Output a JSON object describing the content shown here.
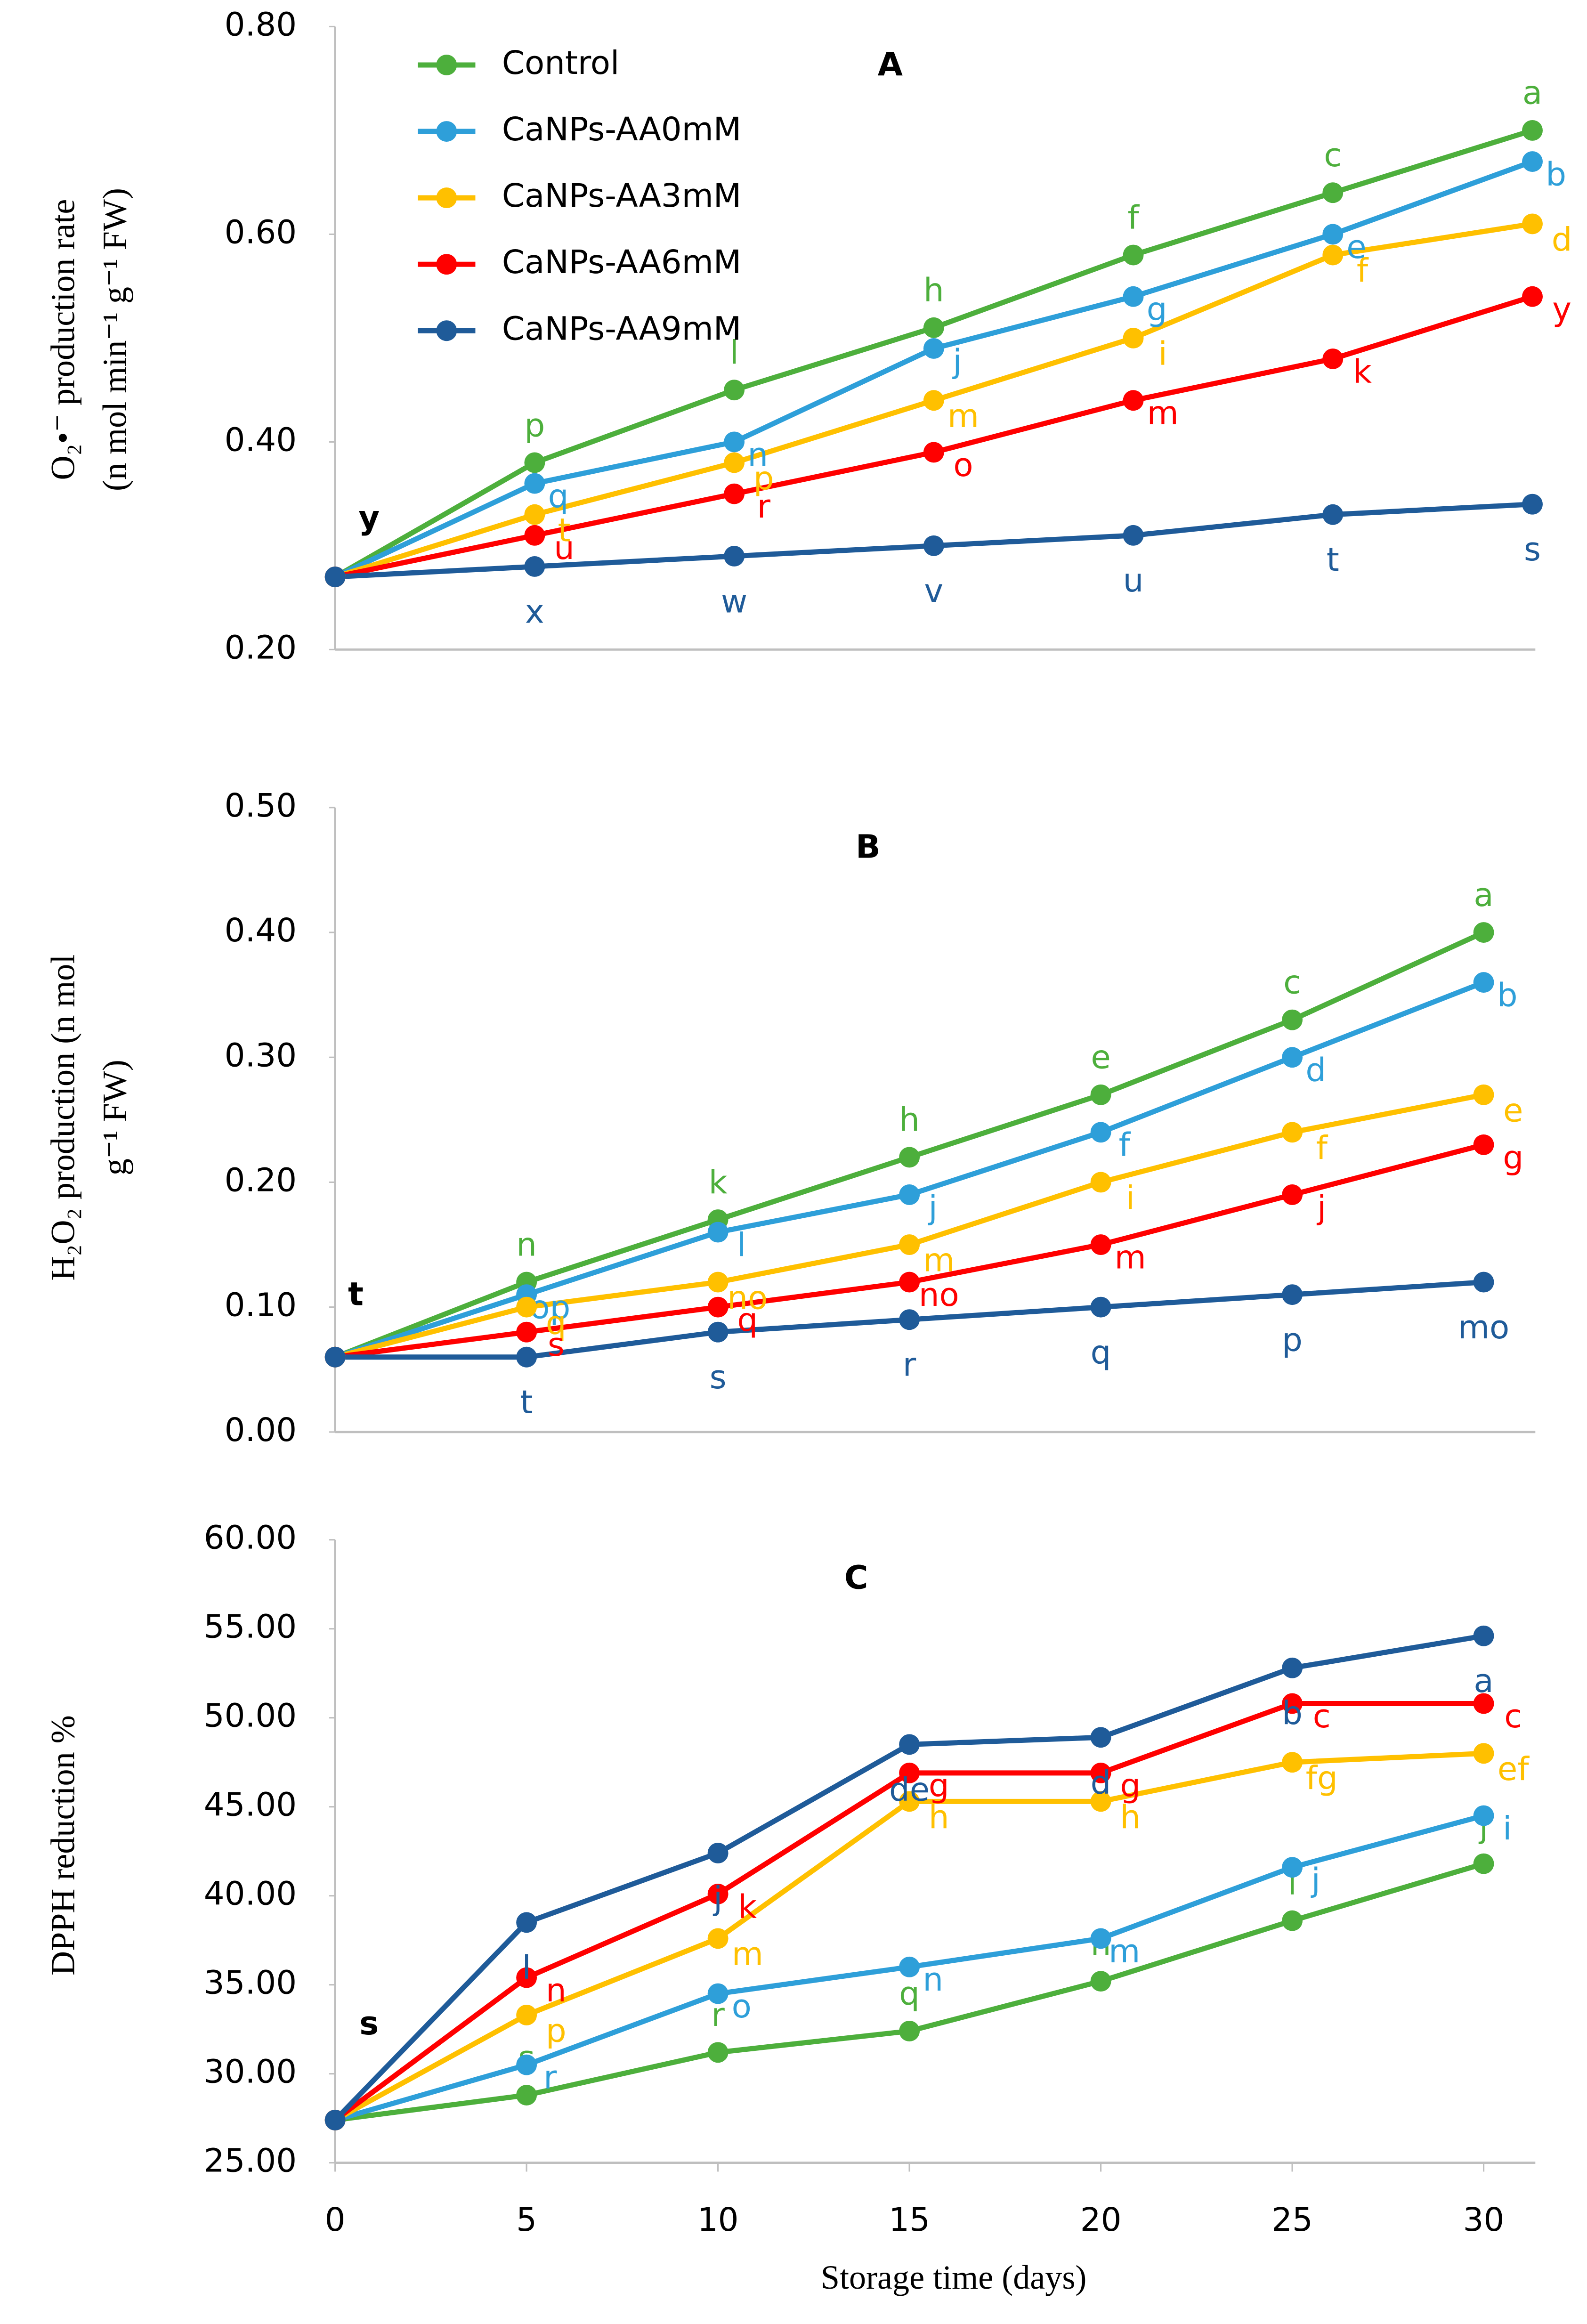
{
  "chart_data": [
    {
      "type": "line",
      "title": "A",
      "ylabel": [
        "O₂•⁻ production rate",
        "(n mol min⁻¹ g⁻¹ FW)"
      ],
      "day0_letter": "y",
      "legend": "top-left",
      "x": [
        0,
        5,
        10,
        15,
        20,
        25,
        30
      ],
      "xlim": [
        0,
        30
      ],
      "ylim": [
        0.2,
        0.8
      ],
      "yticks": [
        {
          "value": 0.2,
          "label": "0.20"
        },
        {
          "value": 0.4,
          "label": "0.40"
        },
        {
          "value": 0.6,
          "label": "0.60"
        },
        {
          "value": 0.8,
          "label": "0.80"
        }
      ],
      "series": [
        {
          "name": "Control",
          "color": "#4daf3c",
          "values": [
            0.27,
            0.38,
            0.45,
            0.51,
            0.58,
            0.64,
            0.7
          ],
          "letters": [
            null,
            "p",
            "l",
            "h",
            "f",
            "c",
            "a"
          ]
        },
        {
          "name": "CaNPs-AA0mM",
          "color": "#2e9fd9",
          "values": [
            0.27,
            0.36,
            0.4,
            0.49,
            0.54,
            0.6,
            0.67
          ],
          "letters": [
            null,
            "q",
            "n",
            "j",
            "g",
            "e",
            "b"
          ]
        },
        {
          "name": "CaNPs-AA3mM",
          "color": "#ffc000",
          "values": [
            0.27,
            0.33,
            0.38,
            0.44,
            0.5,
            0.58,
            0.61
          ],
          "letters": [
            null,
            "t",
            "p",
            "m",
            "i",
            "f",
            "d"
          ]
        },
        {
          "name": "CaNPs-AA6mM",
          "color": "#ff0000",
          "values": [
            0.27,
            0.31,
            0.35,
            0.39,
            0.44,
            0.48,
            0.54
          ],
          "letters": [
            null,
            "u",
            "r",
            "o",
            "m",
            "k",
            "y"
          ]
        },
        {
          "name": "CaNPs-AA9mM",
          "color": "#1f5b99",
          "values": [
            0.27,
            0.28,
            0.29,
            0.3,
            0.31,
            0.33,
            0.34
          ],
          "letters": [
            null,
            "x",
            "w",
            "v",
            "u",
            "t",
            "s"
          ]
        }
      ]
    },
    {
      "type": "line",
      "title": "B",
      "ylabel": [
        "H₂O₂ production (n mol",
        "g⁻¹ FW)"
      ],
      "day0_letter": "t",
      "x": [
        0,
        5,
        10,
        15,
        20,
        25,
        30
      ],
      "xlim": [
        0,
        30
      ],
      "ylim": [
        0,
        0.5
      ],
      "yticks": [
        {
          "value": 0,
          "label": "0.00"
        },
        {
          "value": 0.1,
          "label": "0.10"
        },
        {
          "value": 0.2,
          "label": "0.20"
        },
        {
          "value": 0.3,
          "label": "0.30"
        },
        {
          "value": 0.4,
          "label": "0.40"
        },
        {
          "value": 0.5,
          "label": "0.50"
        }
      ],
      "series": [
        {
          "name": "Control",
          "color": "#4daf3c",
          "values": [
            0.06,
            0.12,
            0.17,
            0.22,
            0.27,
            0.33,
            0.4
          ],
          "letters": [
            null,
            "n",
            "k",
            "h",
            "e",
            "c",
            "a"
          ]
        },
        {
          "name": "CaNPs-AA0mM",
          "color": "#2e9fd9",
          "values": [
            0.06,
            0.11,
            0.16,
            0.19,
            0.24,
            0.3,
            0.36
          ],
          "letters": [
            null,
            "op",
            "l",
            "j",
            "f",
            "d",
            "b"
          ]
        },
        {
          "name": "CaNPs-AA3mM",
          "color": "#ffc000",
          "values": [
            0.06,
            0.1,
            0.12,
            0.15,
            0.2,
            0.24,
            0.27
          ],
          "letters": [
            null,
            "q",
            "no",
            "m",
            "i",
            "f",
            "e"
          ]
        },
        {
          "name": "CaNPs-AA6mM",
          "color": "#ff0000",
          "values": [
            0.06,
            0.08,
            0.1,
            0.12,
            0.15,
            0.19,
            0.23
          ],
          "letters": [
            null,
            "s",
            "q",
            "no",
            "m",
            "j",
            "g"
          ]
        },
        {
          "name": "CaNPs-AA9mM",
          "color": "#1f5b99",
          "values": [
            0.06,
            0.06,
            0.08,
            0.09,
            0.1,
            0.11,
            0.12
          ],
          "letters": [
            null,
            "t",
            "s",
            "r",
            "q",
            "p",
            "mo"
          ]
        }
      ]
    },
    {
      "type": "line",
      "title": "C",
      "ylabel": [
        "DPPH reduction %"
      ],
      "day0_letter": "s",
      "xlabel": "Storage time (days)",
      "x": [
        0,
        5,
        10,
        15,
        20,
        25,
        30
      ],
      "xlim": [
        0,
        30
      ],
      "xticks": [
        0,
        5,
        10,
        15,
        20,
        25,
        30
      ],
      "ylim": [
        25,
        60
      ],
      "yticks": [
        {
          "value": 25,
          "label": "25.00"
        },
        {
          "value": 30,
          "label": "30.00"
        },
        {
          "value": 35,
          "label": "35.00"
        },
        {
          "value": 40,
          "label": "40.00"
        },
        {
          "value": 45,
          "label": "45.00"
        },
        {
          "value": 50,
          "label": "50.00"
        },
        {
          "value": 55,
          "label": "55.00"
        },
        {
          "value": 60,
          "label": "60.00"
        }
      ],
      "series": [
        {
          "name": "Control",
          "color": "#4daf3c",
          "values": [
            27.4,
            28.8,
            31.2,
            32.4,
            35.2,
            38.6,
            41.8
          ],
          "letters": [
            null,
            "s",
            "r",
            "q",
            "n",
            "l",
            "j"
          ]
        },
        {
          "name": "CaNPs-AA0mM",
          "color": "#2e9fd9",
          "values": [
            27.4,
            30.5,
            34.5,
            36.0,
            37.6,
            41.6,
            44.5
          ],
          "letters": [
            null,
            "r",
            "o",
            "n",
            "m",
            "j",
            "i"
          ]
        },
        {
          "name": "CaNPs-AA3mM",
          "color": "#ffc000",
          "values": [
            27.4,
            33.3,
            37.6,
            45.3,
            45.3,
            47.5,
            48.0
          ],
          "letters": [
            null,
            "p",
            "m",
            "h",
            "h",
            "fg",
            "ef"
          ]
        },
        {
          "name": "CaNPs-AA6mM",
          "color": "#ff0000",
          "values": [
            27.4,
            35.4,
            40.1,
            46.9,
            46.9,
            50.8,
            50.8
          ],
          "letters": [
            null,
            "n",
            "k",
            "g",
            "g",
            "c",
            "c"
          ]
        },
        {
          "name": "CaNPs-AA9mM",
          "color": "#1f5b99",
          "values": [
            27.4,
            38.5,
            42.4,
            48.5,
            48.9,
            52.8,
            54.6
          ],
          "letters": [
            null,
            "l",
            "j",
            "de",
            "d",
            "b",
            "a"
          ]
        }
      ]
    }
  ]
}
